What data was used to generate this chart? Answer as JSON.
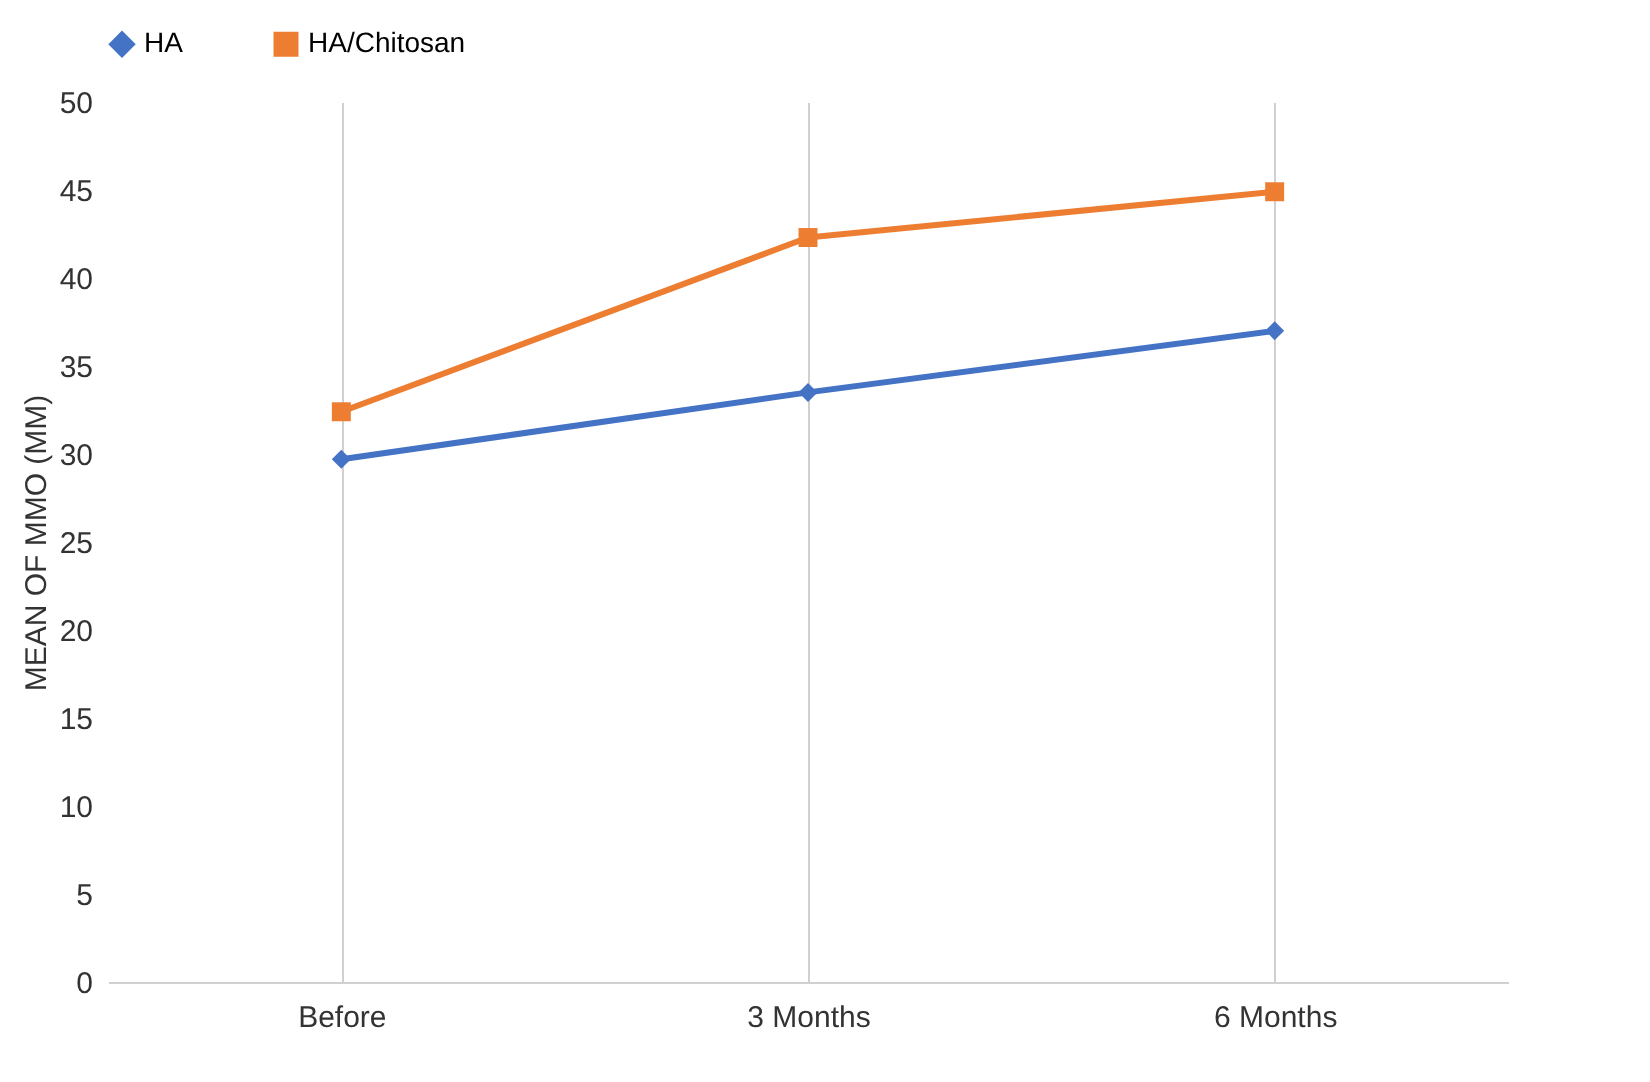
{
  "chart_data": {
    "type": "line",
    "ylabel": "MEAN OF MMO (MM)",
    "categories": [
      "Before",
      "3 Months",
      "6 Months"
    ],
    "series": [
      {
        "name": "HA",
        "color": "#4472c4",
        "marker": "diamond",
        "values": [
          29.7,
          33.5,
          37.0
        ]
      },
      {
        "name": "HA/Chitosan",
        "color": "#ed7d31",
        "marker": "square",
        "values": [
          32.4,
          42.3,
          44.9
        ]
      }
    ],
    "ylim": [
      0,
      50
    ],
    "yticks": [
      0,
      5,
      10,
      15,
      20,
      25,
      30,
      35,
      40,
      45,
      50
    ],
    "grid": "x",
    "legend": "top",
    "line_style": "solid"
  }
}
